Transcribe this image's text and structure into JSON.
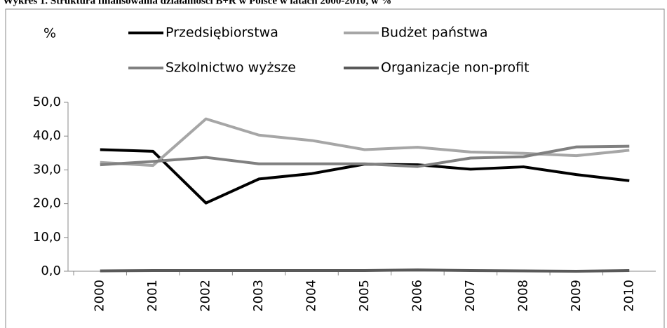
{
  "chart_data": {
    "type": "line",
    "title": "Wykres 1. Struktura finansowania działalności B+R w Polsce w latach 2000-2010, w %",
    "ylabel": "%",
    "categories": [
      "2000",
      "2001",
      "2002",
      "2003",
      "2004",
      "2005",
      "2006",
      "2007",
      "2008",
      "2009",
      "2010"
    ],
    "series": [
      {
        "name": "Przedsiębiorstwa",
        "color": "#000000",
        "values": [
          36.0,
          35.5,
          20.2,
          27.3,
          28.9,
          31.7,
          31.5,
          30.2,
          30.9,
          28.6,
          26.8
        ]
      },
      {
        "name": "Budżet państwa",
        "color": "#a6a6a6",
        "values": [
          32.2,
          31.3,
          45.1,
          40.3,
          38.7,
          36.0,
          36.7,
          35.3,
          34.9,
          34.2,
          35.8
        ]
      },
      {
        "name": "Szkolnictwo wyższe",
        "color": "#808080",
        "values": [
          31.5,
          32.5,
          33.7,
          31.8,
          31.8,
          31.8,
          31.0,
          33.5,
          33.9,
          36.8,
          37.0
        ]
      },
      {
        "name": "Organizacje non-profit",
        "color": "#595959",
        "values": [
          0.1,
          0.2,
          0.2,
          0.2,
          0.2,
          0.2,
          0.4,
          0.2,
          0.1,
          0.0,
          0.2
        ]
      }
    ],
    "ylim": [
      0,
      50
    ],
    "yticks": [
      {
        "value": 0,
        "label": "0,0"
      },
      {
        "value": 10,
        "label": "10,0"
      },
      {
        "value": 20,
        "label": "20,0"
      },
      {
        "value": 30,
        "label": "30,0"
      },
      {
        "value": 40,
        "label": "40,0"
      },
      {
        "value": 50,
        "label": "50,0"
      }
    ],
    "grid": false
  }
}
